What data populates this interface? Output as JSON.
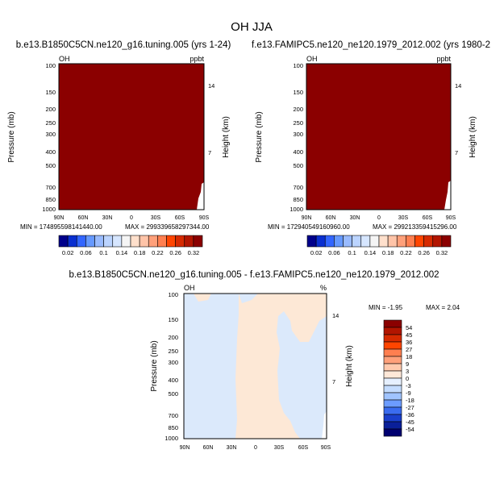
{
  "page": {
    "title": "OH JJA"
  },
  "colorbar_top": {
    "labels": [
      "0.02",
      "0.06",
      "0.1",
      "0.14",
      "0.18",
      "0.22",
      "0.26",
      "0.32"
    ],
    "colors": [
      "#00008b",
      "#0a2fd0",
      "#3366ff",
      "#6699ff",
      "#99bbff",
      "#bbd4ff",
      "#d6e6ff",
      "#f5f5f5",
      "#ffe0cc",
      "#ffc4a8",
      "#ffa07a",
      "#ff7f50",
      "#ff4500",
      "#d62a00",
      "#b21500",
      "#8b0000"
    ]
  },
  "colorbar_diff": {
    "labels": [
      "54",
      "45",
      "36",
      "27",
      "18",
      "9",
      "3",
      "0",
      "-3",
      "-9",
      "-18",
      "-27",
      "-36",
      "-45",
      "-54"
    ],
    "colors": [
      "#8b0000",
      "#b21500",
      "#d62a00",
      "#ff4500",
      "#ff7f50",
      "#ffa07a",
      "#ffc9ad",
      "#ffe8d8",
      "#e6f0ff",
      "#c4dcff",
      "#a0c4ff",
      "#6c9cff",
      "#3a6cf0",
      "#1a3fcc",
      "#0a1f99",
      "#000070"
    ]
  },
  "chart_data": [
    {
      "type": "heatmap",
      "title": "b.e13.B1850C5CN.ne120_g16.tuning.005 (yrs 1-24)",
      "field_label": "OH",
      "units": "ppbt",
      "y_left_label": "Pressure (mb)",
      "y_right_label": "Height (km)",
      "x_ticks": [
        "90N",
        "60N",
        "30N",
        "0",
        "30S",
        "60S",
        "90S"
      ],
      "y_ticks": [
        "100",
        "150",
        "200",
        "250",
        "300",
        "400",
        "500",
        "700",
        "850",
        "1000"
      ],
      "y_right_ticks": [
        "14",
        "7"
      ],
      "min_text": "MIN = 174895598141440.00",
      "max_text": "MAX = 299339658297344.00",
      "field_color": "#8b0000"
    },
    {
      "type": "heatmap",
      "title": "f.e13.FAMIPC5.ne120_ne120.1979_2012.002 (yrs 1980-2",
      "field_label": "OH",
      "units": "ppbt",
      "y_left_label": "Pressure (mb)",
      "y_right_label": "Height (km)",
      "x_ticks": [
        "90N",
        "60N",
        "30N",
        "0",
        "30S",
        "60S",
        "90S"
      ],
      "y_ticks": [
        "100",
        "150",
        "200",
        "250",
        "300",
        "400",
        "500",
        "700",
        "850",
        "1000"
      ],
      "y_right_ticks": [
        "14",
        "7"
      ],
      "min_text": "MIN = 172940549160960.00",
      "max_text": "MAX = 299213359415296.00",
      "field_color": "#8b0000"
    },
    {
      "type": "heatmap",
      "title": "b.e13.B1850C5CN.ne120_g16.tuning.005 - f.e13.FAMIPC5.ne120_ne120.1979_2012.002",
      "field_label": "OH",
      "units": "%",
      "y_left_label": "Pressure (mb)",
      "y_right_label": "Height (km)",
      "x_ticks": [
        "90N",
        "60N",
        "30N",
        "0",
        "30S",
        "60S",
        "90S"
      ],
      "y_ticks": [
        "100",
        "150",
        "200",
        "250",
        "300",
        "400",
        "500",
        "700",
        "850",
        "1000"
      ],
      "y_right_ticks": [
        "14",
        "7"
      ],
      "min_text": "MIN = -1.95",
      "max_text": "MAX = 2.04",
      "field_color": "#dbe9fb",
      "positive_color": "#fde8d6"
    }
  ]
}
